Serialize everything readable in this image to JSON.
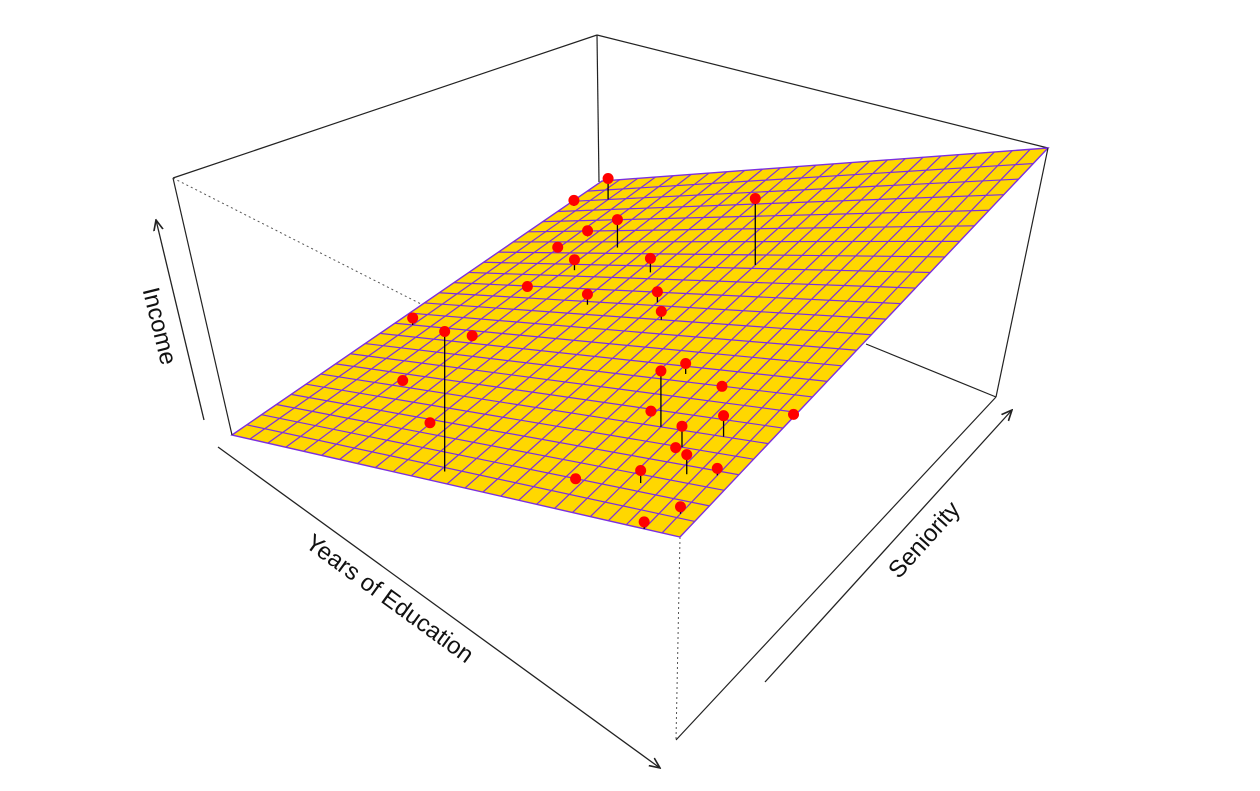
{
  "chart_data": {
    "type": "scatter",
    "subtype": "3d-regression-plane",
    "title": "",
    "xlabel": "Years of Education",
    "ylabel": "Seniority",
    "zlabel": "Income",
    "colors": {
      "plane_fill": "#ffd700",
      "plane_grid": "#7b2fe0",
      "points": "#ff0000",
      "residuals": "#000000",
      "box": "#222222"
    },
    "plane_grid_divisions": 25,
    "points": [
      {
        "x": 0.92,
        "y": 0.08,
        "above": 0.03
      },
      {
        "x": 0.9,
        "y": 0.02,
        "above": 0.008
      },
      {
        "x": 0.82,
        "y": 0.05,
        "above": -0.03
      },
      {
        "x": 0.75,
        "y": 0.04,
        "above": -0.06
      },
      {
        "x": 0.78,
        "y": 0.15,
        "above": 0.008
      },
      {
        "x": 0.74,
        "y": 0.25,
        "above": 0.04
      },
      {
        "x": 0.66,
        "y": 0.22,
        "above": 0.015
      },
      {
        "x": 0.55,
        "y": 0.34,
        "above": 0.015
      },
      {
        "x": 0.48,
        "y": 0.14,
        "above": -0.025
      },
      {
        "x": 0.44,
        "y": 0.04,
        "above": 0.01
      },
      {
        "x": 0.28,
        "y": 0.15,
        "above": -0.01
      },
      {
        "x": 0.16,
        "y": 0.31,
        "above": -0.005
      },
      {
        "x": 0.66,
        "y": 0.39,
        "above": 0.02
      },
      {
        "x": 0.57,
        "y": 0.48,
        "above": 0.015
      },
      {
        "x": 0.69,
        "y": 0.6,
        "above": 0.095
      },
      {
        "x": 0.52,
        "y": 0.53,
        "above": 0.012
      },
      {
        "x": 0.43,
        "y": 0.74,
        "above": -0.04
      },
      {
        "x": 0.38,
        "y": 0.7,
        "above": 0.015
      },
      {
        "x": 0.31,
        "y": 0.68,
        "above": -0.02
      },
      {
        "x": 0.28,
        "y": 0.76,
        "above": -0.05
      },
      {
        "x": 0.24,
        "y": 0.9,
        "above": 0.03
      },
      {
        "x": 0.2,
        "y": 0.84,
        "above": 0.03
      },
      {
        "x": 0.14,
        "y": 0.9,
        "above": 0.028
      },
      {
        "x": 0.15,
        "y": 0.96,
        "above": 0.01
      },
      {
        "x": 0.1,
        "y": 0.83,
        "above": 0.018
      },
      {
        "x": 0.05,
        "y": 0.96,
        "above": 0.01
      },
      {
        "x": 0.43,
        "y": 0.9,
        "above": -0.07
      },
      {
        "x": 0.24,
        "y": 0.76,
        "above": 0.08
      },
      {
        "x": 0.13,
        "y": 0.66,
        "above": -0.03
      },
      {
        "x": 0.03,
        "y": 0.45,
        "above": 0.2
      },
      {
        "x": 0.0,
        "y": 0.92,
        "above": 0.01
      }
    ]
  }
}
